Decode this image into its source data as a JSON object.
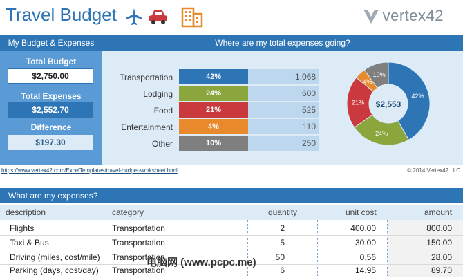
{
  "header": {
    "title": "Travel Budget",
    "logo_text": "vertex42",
    "icons": [
      "airplane-icon",
      "car-icon",
      "building-icon"
    ]
  },
  "summary": {
    "heading": "My Budget & Expenses",
    "total_budget_label": "Total Budget",
    "total_budget_value": "$2,750.00",
    "total_expenses_label": "Total Expenses",
    "total_expenses_value": "$2,552.70",
    "difference_label": "Difference",
    "difference_value": "$197.30"
  },
  "breakdown": {
    "heading": "Where are my total expenses going?",
    "categories": [
      {
        "label": "Transportation",
        "percent": "42%",
        "amount": "1,068",
        "color": "#2e75b6"
      },
      {
        "label": "Lodging",
        "percent": "24%",
        "amount": "600",
        "color": "#8aa63c"
      },
      {
        "label": "Food",
        "percent": "21%",
        "amount": "525",
        "color": "#c9393e"
      },
      {
        "label": "Entertainment",
        "percent": "4%",
        "amount": "110",
        "color": "#e8892b"
      },
      {
        "label": "Other",
        "percent": "10%",
        "amount": "250",
        "color": "#7f7f7f"
      }
    ],
    "donut_center": "$2,553"
  },
  "footer": {
    "url": "https://www.vertex42.com/ExcelTemplates/travel-budget-worksheet.html",
    "copyright": "© 2014 Vertex42 LLC"
  },
  "expenses": {
    "heading": "What are my expenses?",
    "columns": [
      "description",
      "category",
      "quantity",
      "unit cost",
      "amount"
    ],
    "rows": [
      {
        "description": "Flights",
        "category": "Transportation",
        "quantity": "2",
        "unit_cost": "400.00",
        "amount": "800.00"
      },
      {
        "description": "Taxi & Bus",
        "category": "Transportation",
        "quantity": "5",
        "unit_cost": "30.00",
        "amount": "150.00"
      },
      {
        "description": "Driving (miles, cost/mile)",
        "category": "Transportation",
        "quantity": "50",
        "unit_cost": "0.56",
        "amount": "28.00"
      },
      {
        "description": "Parking (days, cost/day)",
        "category": "Transportation",
        "quantity": "6",
        "unit_cost": "14.95",
        "amount": "89.70"
      }
    ]
  },
  "watermark": "电脑网 (www.pcpc.me)"
}
